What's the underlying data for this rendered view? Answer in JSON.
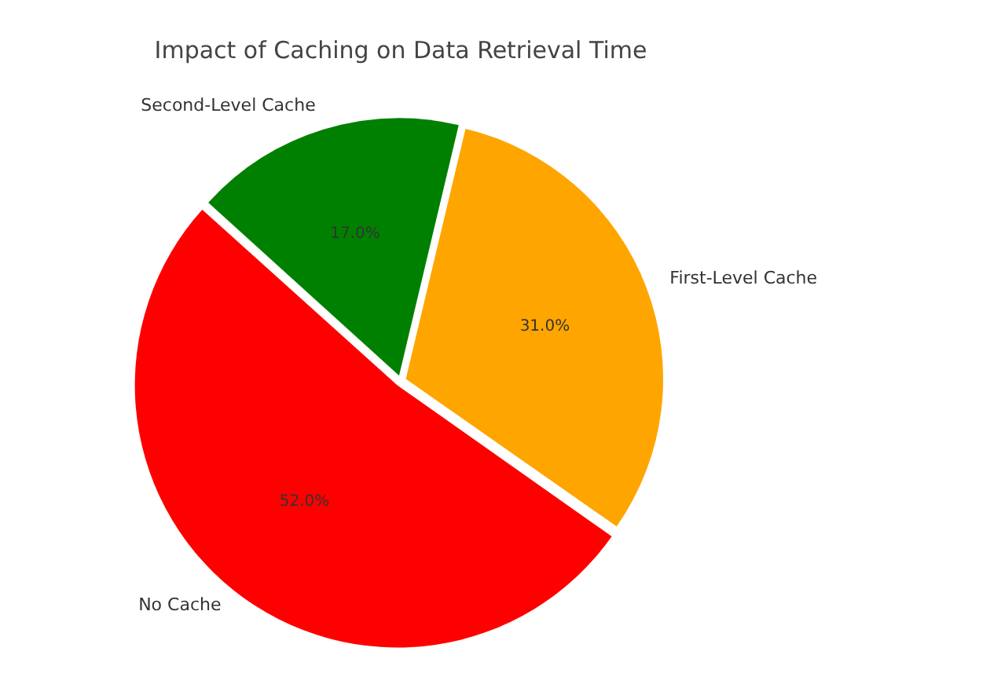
{
  "chart_data": {
    "type": "pie",
    "title": "Impact of Caching on Data Retrieval Time",
    "categories": [
      "First-Level Cache",
      "Second-Level Cache",
      "No Cache"
    ],
    "values": [
      31.0,
      17.0,
      52.0
    ],
    "colors": [
      "#ffa500",
      "#008000",
      "#ff0000"
    ],
    "value_labels": [
      "31.0%",
      "17.0%",
      "52.0%"
    ],
    "legend": false
  }
}
